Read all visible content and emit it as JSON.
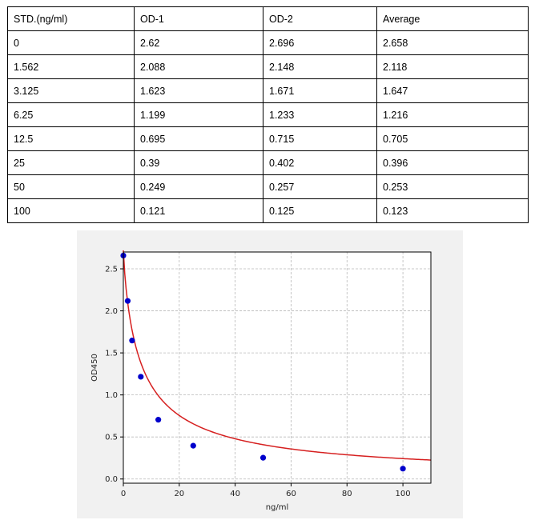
{
  "table": {
    "headers": [
      "STD.(ng/ml)",
      "OD-1",
      "OD-2",
      "Average"
    ],
    "rows": [
      [
        "0",
        "2.62",
        "2.696",
        "2.658"
      ],
      [
        "1.562",
        "2.088",
        "2.148",
        "2.118"
      ],
      [
        "3.125",
        "1.623",
        "1.671",
        "1.647"
      ],
      [
        "6.25",
        "1.199",
        "1.233",
        "1.216"
      ],
      [
        "12.5",
        "0.695",
        "0.715",
        "0.705"
      ],
      [
        "25",
        "0.39",
        "0.402",
        "0.396"
      ],
      [
        "50",
        "0.249",
        "0.257",
        "0.253"
      ],
      [
        "100",
        "0.121",
        "0.125",
        "0.123"
      ]
    ]
  },
  "chart_data": {
    "type": "scatter",
    "title": "",
    "xlabel": "ng/ml",
    "ylabel": "OD450",
    "xlim": [
      0,
      110
    ],
    "ylim": [
      -0.05,
      2.7
    ],
    "xticks": [
      0,
      20,
      40,
      60,
      80,
      100
    ],
    "yticks": [
      0.0,
      0.5,
      1.0,
      1.5,
      2.0,
      2.5
    ],
    "grid": true,
    "series": [
      {
        "kind": "points",
        "color": "#0000cc",
        "x": [
          0,
          1.562,
          3.125,
          6.25,
          12.5,
          25,
          50,
          100
        ],
        "y": [
          2.658,
          2.118,
          1.647,
          1.216,
          0.705,
          0.396,
          0.253,
          0.123
        ]
      },
      {
        "kind": "fit-curve",
        "color": "#d62020"
      }
    ]
  }
}
